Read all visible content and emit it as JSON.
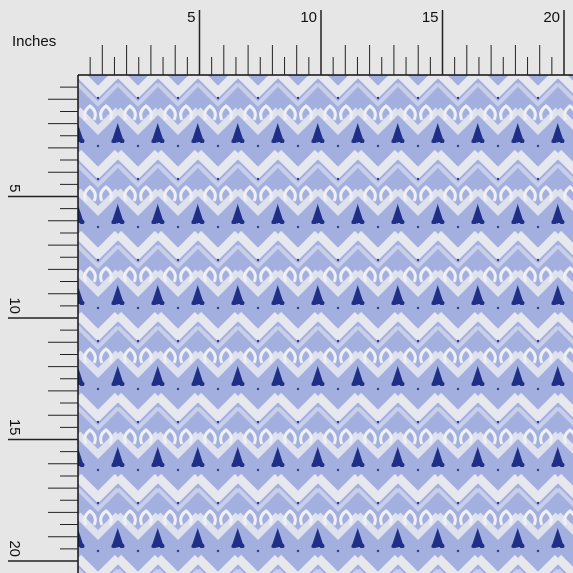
{
  "ruler": {
    "unit_label": "Inches",
    "top_labels": [
      "5",
      "10",
      "15",
      "20"
    ],
    "left_labels": [
      "5",
      "10",
      "15",
      "20"
    ]
  }
}
